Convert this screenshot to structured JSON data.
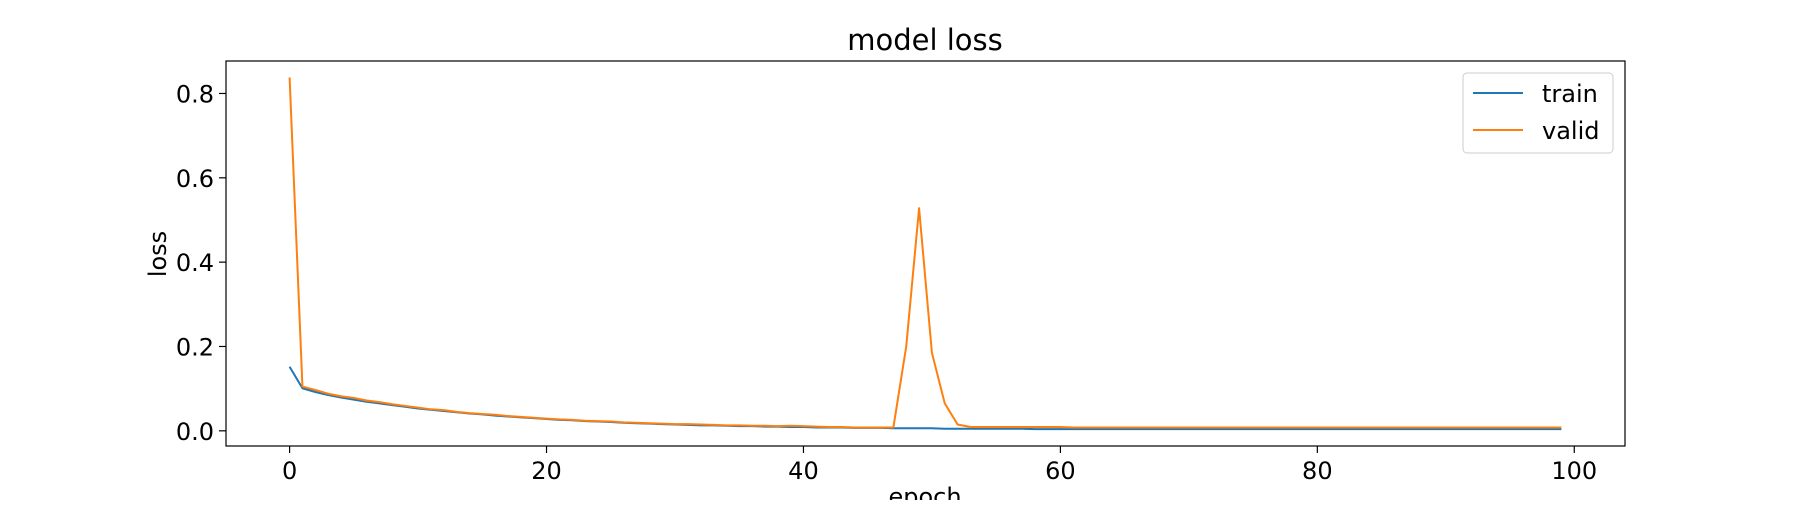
{
  "chart_data": {
    "type": "line",
    "title": "model loss",
    "xlabel": "epoch",
    "ylabel": "loss",
    "xlim": [
      -4.95,
      103.95
    ],
    "ylim": [
      -0.036,
      0.877
    ],
    "xticks": [
      0,
      20,
      40,
      60,
      80,
      100
    ],
    "yticks": [
      0.0,
      0.2,
      0.4,
      0.6,
      0.8
    ],
    "xtick_labels": [
      "0",
      "20",
      "40",
      "60",
      "80",
      "100"
    ],
    "ytick_labels": [
      "0.0",
      "0.2",
      "0.4",
      "0.6",
      "0.8"
    ],
    "grid": false,
    "legend_position": "top-right",
    "series": [
      {
        "name": "train",
        "color": "#1f77b4",
        "values": [
          0.152,
          0.101,
          0.092,
          0.085,
          0.079,
          0.074,
          0.069,
          0.065,
          0.061,
          0.057,
          0.053,
          0.05,
          0.047,
          0.044,
          0.041,
          0.039,
          0.036,
          0.034,
          0.032,
          0.03,
          0.028,
          0.026,
          0.025,
          0.023,
          0.022,
          0.021,
          0.019,
          0.018,
          0.017,
          0.016,
          0.015,
          0.014,
          0.013,
          0.013,
          0.012,
          0.011,
          0.011,
          0.01,
          0.01,
          0.009,
          0.009,
          0.008,
          0.008,
          0.008,
          0.007,
          0.007,
          0.007,
          0.006,
          0.006,
          0.006,
          0.006,
          0.005,
          0.005,
          0.005,
          0.005,
          0.005,
          0.005,
          0.005,
          0.004,
          0.004,
          0.004,
          0.004,
          0.004,
          0.004,
          0.004,
          0.004,
          0.004,
          0.004,
          0.004,
          0.004,
          0.004,
          0.004,
          0.004,
          0.004,
          0.004,
          0.004,
          0.004,
          0.004,
          0.004,
          0.004,
          0.004,
          0.004,
          0.004,
          0.004,
          0.004,
          0.004,
          0.004,
          0.004,
          0.004,
          0.004,
          0.004,
          0.004,
          0.004,
          0.004,
          0.004,
          0.004,
          0.004,
          0.004,
          0.004,
          0.004
        ]
      },
      {
        "name": "valid",
        "color": "#ff7f0e",
        "values": [
          0.838,
          0.105,
          0.097,
          0.088,
          0.082,
          0.078,
          0.072,
          0.068,
          0.063,
          0.059,
          0.055,
          0.051,
          0.049,
          0.045,
          0.042,
          0.04,
          0.038,
          0.035,
          0.033,
          0.031,
          0.029,
          0.027,
          0.026,
          0.024,
          0.023,
          0.022,
          0.02,
          0.019,
          0.018,
          0.017,
          0.016,
          0.016,
          0.015,
          0.014,
          0.013,
          0.013,
          0.012,
          0.012,
          0.011,
          0.012,
          0.011,
          0.01,
          0.009,
          0.009,
          0.008,
          0.008,
          0.008,
          0.008,
          0.2,
          0.528,
          0.185,
          0.065,
          0.015,
          0.009,
          0.009,
          0.009,
          0.009,
          0.009,
          0.009,
          0.009,
          0.009,
          0.008,
          0.008,
          0.008,
          0.008,
          0.008,
          0.008,
          0.008,
          0.008,
          0.008,
          0.008,
          0.008,
          0.008,
          0.008,
          0.008,
          0.008,
          0.008,
          0.008,
          0.008,
          0.008,
          0.008,
          0.008,
          0.008,
          0.008,
          0.008,
          0.008,
          0.008,
          0.008,
          0.008,
          0.008,
          0.008,
          0.008,
          0.008,
          0.008,
          0.008,
          0.008,
          0.008,
          0.008,
          0.008,
          0.008
        ]
      }
    ]
  }
}
